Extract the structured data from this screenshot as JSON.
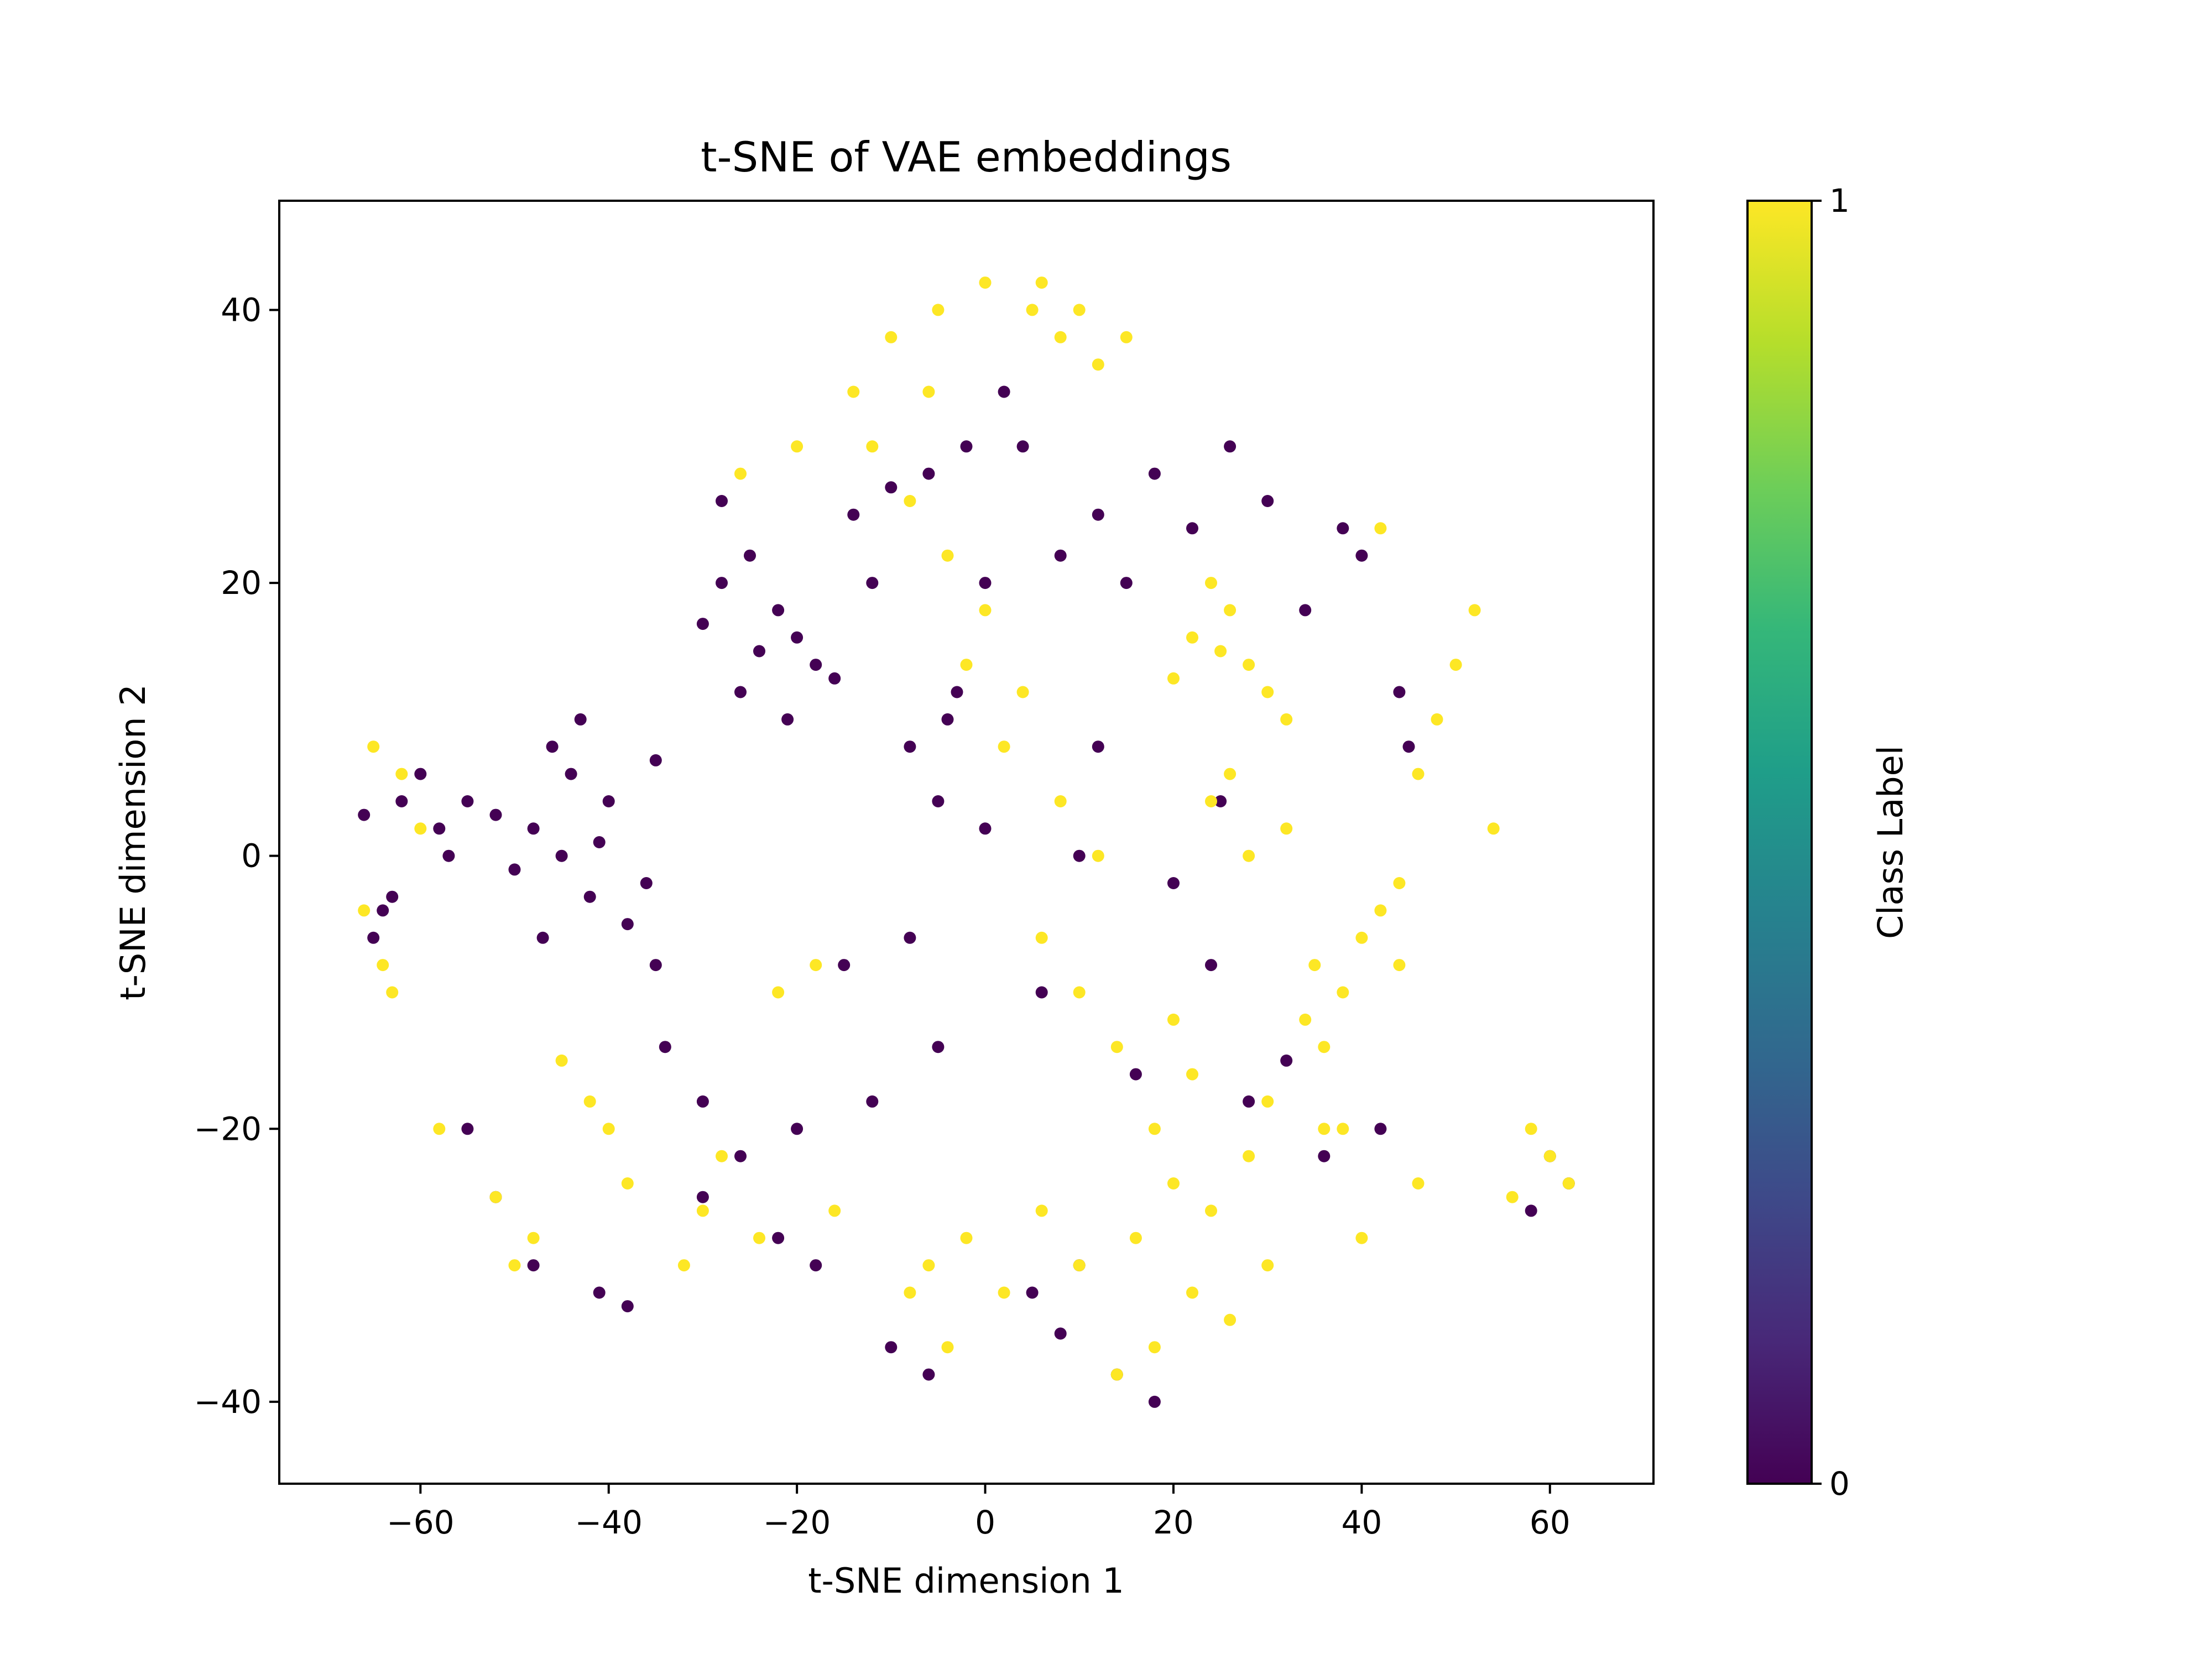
{
  "chart_data": {
    "type": "scatter",
    "title": "t-SNE of VAE embeddings",
    "xlabel": "t-SNE dimension 1",
    "ylabel": "t-SNE dimension 2",
    "xlim": [
      -75,
      71
    ],
    "ylim": [
      -46,
      48
    ],
    "xticks": [
      -60,
      -40,
      -20,
      0,
      20,
      40,
      60
    ],
    "xtick_labels": [
      "−60",
      "−40",
      "−20",
      "0",
      "20",
      "40",
      "60"
    ],
    "yticks": [
      -40,
      -20,
      0,
      20,
      40
    ],
    "ytick_labels": [
      "−40",
      "−20",
      "0",
      "20",
      "40"
    ],
    "grid": false,
    "colorbar": {
      "label": "Class Label",
      "colormap": "viridis",
      "range": [
        0,
        1
      ],
      "tick_labels": [
        "0",
        "1"
      ],
      "stops": [
        "#440154",
        "#482878",
        "#3e4989",
        "#31688e",
        "#26828e",
        "#1f9e89",
        "#35b779",
        "#6ece58",
        "#b5de2b",
        "#fde725"
      ]
    },
    "series": [
      {
        "class": 0,
        "color": "#440154",
        "x": [
          -45,
          -48,
          -42,
          -50,
          -40,
          -44,
          -38,
          -46,
          -52,
          -36,
          -43,
          -47,
          -41,
          -55,
          -35,
          -24,
          -22,
          -26,
          -20,
          -28,
          -18,
          -25,
          -30,
          -16,
          -21,
          -12,
          -14,
          -10,
          -60,
          -62,
          -58,
          -64,
          -57,
          -66,
          -5,
          -8,
          -3,
          0,
          -6,
          4,
          8,
          12,
          -2,
          2,
          18,
          22,
          26,
          15,
          30,
          34,
          40,
          45,
          44,
          38,
          -55,
          -52,
          -48,
          -30,
          -26,
          -22,
          -18,
          -10,
          -6,
          5,
          10,
          14,
          18,
          8,
          -4,
          -34,
          -30,
          28,
          32,
          36,
          42,
          60,
          62,
          58,
          -65,
          -63,
          -41,
          -38,
          -20,
          -35,
          -15,
          20,
          25,
          -12,
          -8,
          -28,
          6,
          16,
          24,
          12,
          0,
          -5,
          10
        ],
        "y": [
          0,
          2,
          -3,
          -1,
          4,
          6,
          -5,
          8,
          3,
          -2,
          10,
          -6,
          1,
          4,
          7,
          15,
          18,
          12,
          16,
          20,
          14,
          22,
          17,
          13,
          10,
          20,
          25,
          27,
          6,
          4,
          2,
          -4,
          0,
          3,
          4,
          8,
          12,
          20,
          28,
          30,
          22,
          25,
          30,
          34,
          28,
          24,
          30,
          20,
          26,
          18,
          22,
          8,
          12,
          24,
          -20,
          -25,
          -30,
          -25,
          -22,
          -28,
          -30,
          -36,
          -38,
          -32,
          -30,
          -38,
          -40,
          -35,
          10,
          -14,
          -18,
          -18,
          -15,
          -22,
          -20,
          -22,
          -24,
          -26,
          -6,
          -3,
          -32,
          -33,
          -20,
          -8,
          -8,
          -2,
          4,
          -18,
          -6,
          26,
          -10,
          -16,
          -8,
          8,
          2,
          -14,
          0
        ]
      },
      {
        "class": 1,
        "color": "#fde725",
        "x": [
          25,
          28,
          22,
          30,
          26,
          32,
          20,
          24,
          35,
          38,
          40,
          34,
          36,
          42,
          30,
          28,
          38,
          44,
          32,
          26,
          22,
          18,
          20,
          24,
          16,
          14,
          10,
          6,
          12,
          8,
          2,
          4,
          -2,
          0,
          -4,
          -8,
          -12,
          -6,
          46,
          48,
          50,
          52,
          54,
          44,
          46,
          40,
          42,
          -65,
          -62,
          -60,
          -66,
          -64,
          -63,
          -58,
          -52,
          -50,
          -48,
          -45,
          -42,
          -40,
          -38,
          -32,
          -30,
          -28,
          -24,
          -22,
          -18,
          -16,
          -8,
          -6,
          -4,
          -2,
          2,
          6,
          10,
          14,
          18,
          22,
          26,
          30,
          36,
          58,
          60,
          62,
          56,
          5,
          8,
          12,
          0,
          -5,
          -10,
          -14,
          -20,
          -26,
          15,
          10,
          6,
          20,
          24,
          28
        ],
        "y": [
          15,
          14,
          16,
          12,
          18,
          10,
          13,
          20,
          -8,
          -10,
          -6,
          -12,
          -14,
          -4,
          -18,
          -22,
          -20,
          -2,
          2,
          6,
          -16,
          -20,
          -24,
          -26,
          -28,
          -14,
          -10,
          -6,
          0,
          4,
          8,
          12,
          14,
          18,
          22,
          26,
          30,
          34,
          6,
          10,
          14,
          18,
          2,
          -8,
          -24,
          -28,
          24,
          8,
          6,
          2,
          -4,
          -8,
          -10,
          -20,
          -25,
          -30,
          -28,
          -15,
          -18,
          -20,
          -24,
          -30,
          -26,
          -22,
          -28,
          -10,
          -8,
          -26,
          -32,
          -30,
          -36,
          -28,
          -32,
          -26,
          -30,
          -38,
          -36,
          -32,
          -34,
          -30,
          -20,
          -20,
          -22,
          -24,
          -25,
          40,
          38,
          36,
          42,
          40,
          38,
          34,
          30,
          28,
          38,
          40,
          42,
          -12,
          4,
          0
        ]
      }
    ]
  }
}
